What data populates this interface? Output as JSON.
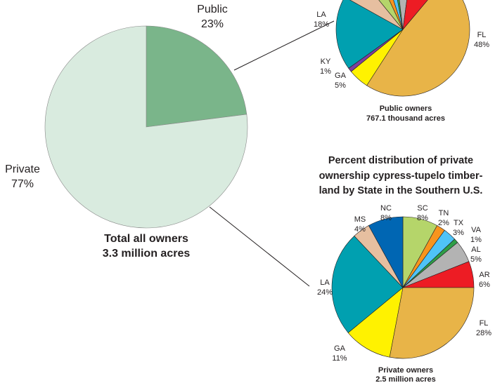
{
  "chart_data": [
    {
      "type": "pie",
      "categories": [
        "Public",
        "Private"
      ],
      "values": [
        23,
        77
      ],
      "value_labels": [
        "23%",
        "77%"
      ],
      "colors": [
        "#7ab58a",
        "#d9ebdf"
      ],
      "caption": [
        "Total all owners",
        "3.3 million acres"
      ]
    },
    {
      "type": "pie",
      "categories": [
        "FL",
        "GA",
        "KY",
        "LA",
        null,
        null,
        null,
        null,
        null,
        null,
        null
      ],
      "values": [
        48,
        5,
        1,
        18,
        6,
        4,
        2,
        2,
        1,
        4,
        9
      ],
      "value_labels": [
        "48%",
        "5%",
        "1%",
        "18%",
        null,
        null,
        null,
        null,
        null,
        null,
        null
      ],
      "colors": [
        "#e8b448",
        "#fff200",
        "#7b3fa0",
        "#00a0b0",
        "#e6bfa0",
        "#b5d56a",
        "#f7941d",
        "#4fc3f7",
        "#2e9e47",
        "#b3b3b3",
        "#ed1c24"
      ],
      "caption": [
        "Public owners",
        "767.1 thousand acres"
      ]
    },
    {
      "type": "pie",
      "title": [
        "Percent distribution of private",
        "ownership cypress-tupelo timber-",
        "land by State in the Southern U.S."
      ],
      "categories": [
        "SC",
        "TN",
        "TX",
        "VA",
        "AL",
        "AR",
        "FL",
        "GA",
        "LA",
        "MS",
        "NC"
      ],
      "values": [
        8,
        2,
        3,
        1,
        5,
        6,
        28,
        11,
        24,
        4,
        8
      ],
      "value_labels": [
        "8%",
        "2%",
        "3%",
        "1%",
        "5%",
        "6%",
        "28%",
        "11%",
        "24%",
        "4%",
        "8%"
      ],
      "colors": [
        "#b5d56a",
        "#f7941d",
        "#4fc3f7",
        "#2e9e47",
        "#b3b3b3",
        "#ed1c24",
        "#e8b448",
        "#fff200",
        "#00a0b0",
        "#e6bfa0",
        "#0066b3"
      ],
      "caption": [
        "Private owners",
        "2.5 million acres"
      ]
    }
  ]
}
